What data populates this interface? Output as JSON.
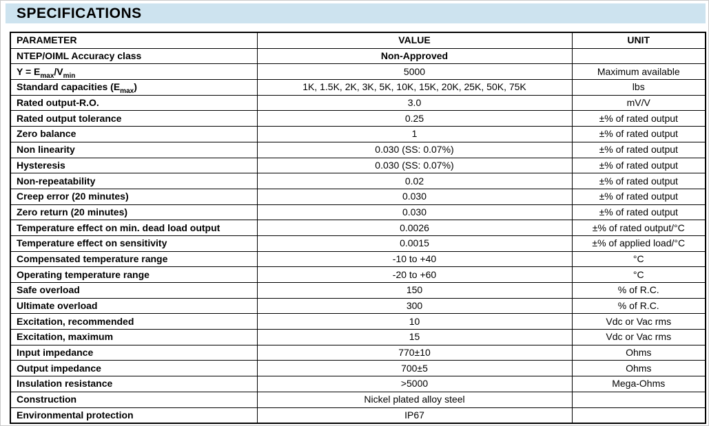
{
  "page": {
    "title": "SPECIFICATIONS"
  },
  "colors": {
    "banner_bg": "#cde3ef",
    "table_border": "#000000",
    "page_bg": "#ffffff",
    "text": "#000000"
  },
  "table": {
    "headers": {
      "parameter": "PARAMETER",
      "value": "VALUE",
      "unit": "UNIT"
    },
    "rows": [
      {
        "param": "NTEP/OIML Accuracy class",
        "value": "Non-Approved",
        "unit": ""
      },
      {
        "param": "Y = Emax/Vmin",
        "param_runs": [
          {
            "t": "Y = E"
          },
          {
            "t": "max",
            "sub": true
          },
          {
            "t": "/V"
          },
          {
            "t": "min",
            "sub": true
          }
        ],
        "value": "5000",
        "unit": "Maximum available"
      },
      {
        "param": "Standard capacities (Emax)",
        "param_runs": [
          {
            "t": "Standard capacities (E"
          },
          {
            "t": "max",
            "sub": true
          },
          {
            "t": ")"
          }
        ],
        "value": "1K, 1.5K, 2K, 3K, 5K, 10K, 15K, 20K, 25K, 50K, 75K",
        "unit": "lbs"
      },
      {
        "param": "Rated output-R.O.",
        "value": "3.0",
        "unit": "mV/V"
      },
      {
        "param": "Rated output tolerance",
        "value": "0.25",
        "unit": "±% of rated output"
      },
      {
        "param": "Zero balance",
        "value": "1",
        "unit": "±% of rated output"
      },
      {
        "param": "Non linearity",
        "value": "0.030 (SS: 0.07%)",
        "unit": "±% of rated output"
      },
      {
        "param": "Hysteresis",
        "value": "0.030 (SS: 0.07%)",
        "unit": "±% of rated output"
      },
      {
        "param": "Non-repeatability",
        "value": "0.02",
        "unit": "±% of rated output"
      },
      {
        "param": "Creep error (20 minutes)",
        "value": "0.030",
        "unit": "±% of rated output"
      },
      {
        "param": "Zero return (20 minutes)",
        "value": "0.030",
        "unit": "±% of rated output"
      },
      {
        "param": "Temperature effect on min. dead load output",
        "value": "0.0026",
        "unit": "±% of rated output/°C"
      },
      {
        "param": "Temperature effect on sensitivity",
        "value": "0.0015",
        "unit": "±% of applied load/°C"
      },
      {
        "param": "Compensated temperature range",
        "value": "-10 to +40",
        "unit": "°C"
      },
      {
        "param": "Operating temperature range",
        "value": "-20 to +60",
        "unit": "°C"
      },
      {
        "param": "Safe overload",
        "value": "150",
        "unit": "% of R.C."
      },
      {
        "param": "Ultimate overload",
        "value": "300",
        "unit": "% of R.C."
      },
      {
        "param": "Excitation, recommended",
        "value": "10",
        "unit": "Vdc or Vac rms"
      },
      {
        "param": "Excitation, maximum",
        "value": "15",
        "unit": "Vdc or Vac rms"
      },
      {
        "param": "Input impedance",
        "value": "770±10",
        "unit": "Ohms"
      },
      {
        "param": "Output impedance",
        "value": "700±5",
        "unit": "Ohms"
      },
      {
        "param": "Insulation resistance",
        "value": ">5000",
        "unit": "Mega-Ohms"
      },
      {
        "param": "Construction",
        "value": "Nickel plated alloy steel",
        "unit": ""
      },
      {
        "param": "Environmental protection",
        "value": "IP67",
        "unit": ""
      }
    ]
  }
}
